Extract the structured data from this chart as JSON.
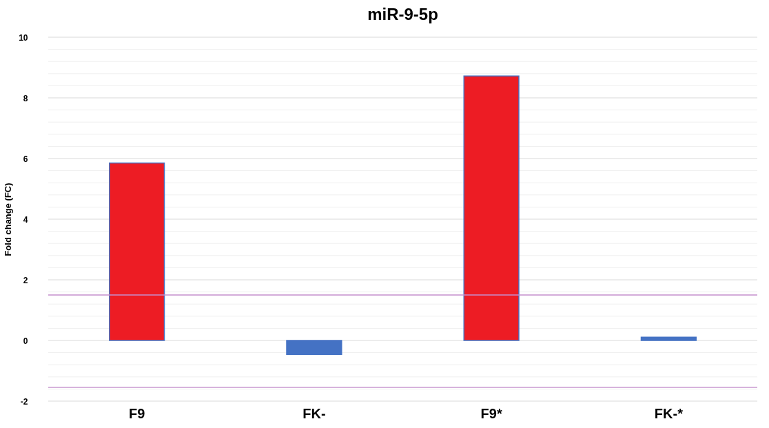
{
  "chart_data": {
    "type": "bar",
    "title": "miR-9-5p",
    "ylabel": "Fold change (FC)",
    "categories": [
      "F9",
      "FK-",
      "F9*",
      "FK-*"
    ],
    "values": [
      5.85,
      -0.46,
      8.72,
      0.11
    ],
    "colors": [
      "#ed1c24",
      "#4472c4",
      "#ed1c24",
      "#4472c4"
    ],
    "ylim": [
      -2,
      10
    ],
    "yticks": [
      -2,
      {
        "value": -1.6,
        "label": null
      },
      {
        "value": -1.2,
        "label": null
      },
      {
        "value": -0.8,
        "label": null
      },
      {
        "value": -0.4,
        "label": null
      },
      0,
      {
        "value": 0.4,
        "label": null
      },
      {
        "value": 0.8,
        "label": null
      },
      {
        "value": 1.2,
        "label": null
      },
      {
        "value": 1.6,
        "label": null
      },
      2,
      {
        "value": 2.4,
        "label": null
      },
      {
        "value": 2.8,
        "label": null
      },
      {
        "value": 3.2,
        "label": null
      },
      {
        "value": 3.6,
        "label": null
      },
      4,
      {
        "value": 4.4,
        "label": null
      },
      {
        "value": 4.8,
        "label": null
      },
      {
        "value": 5.2,
        "label": null
      },
      {
        "value": 5.6,
        "label": null
      },
      6,
      {
        "value": 6.4,
        "label": null
      },
      {
        "value": 6.8,
        "label": null
      },
      {
        "value": 7.2,
        "label": null
      },
      {
        "value": 7.6,
        "label": null
      },
      8,
      {
        "value": 8.4,
        "label": null
      },
      {
        "value": 8.8,
        "label": null
      },
      {
        "value": 9.2,
        "label": null
      },
      {
        "value": 9.6,
        "label": null
      },
      10
    ],
    "grid": "y",
    "ref_lines": [
      {
        "axis": "y",
        "value": 1.5,
        "color": "#c58fcc"
      },
      {
        "axis": "y",
        "value": -1.55,
        "color": "#c58fcc"
      }
    ]
  }
}
